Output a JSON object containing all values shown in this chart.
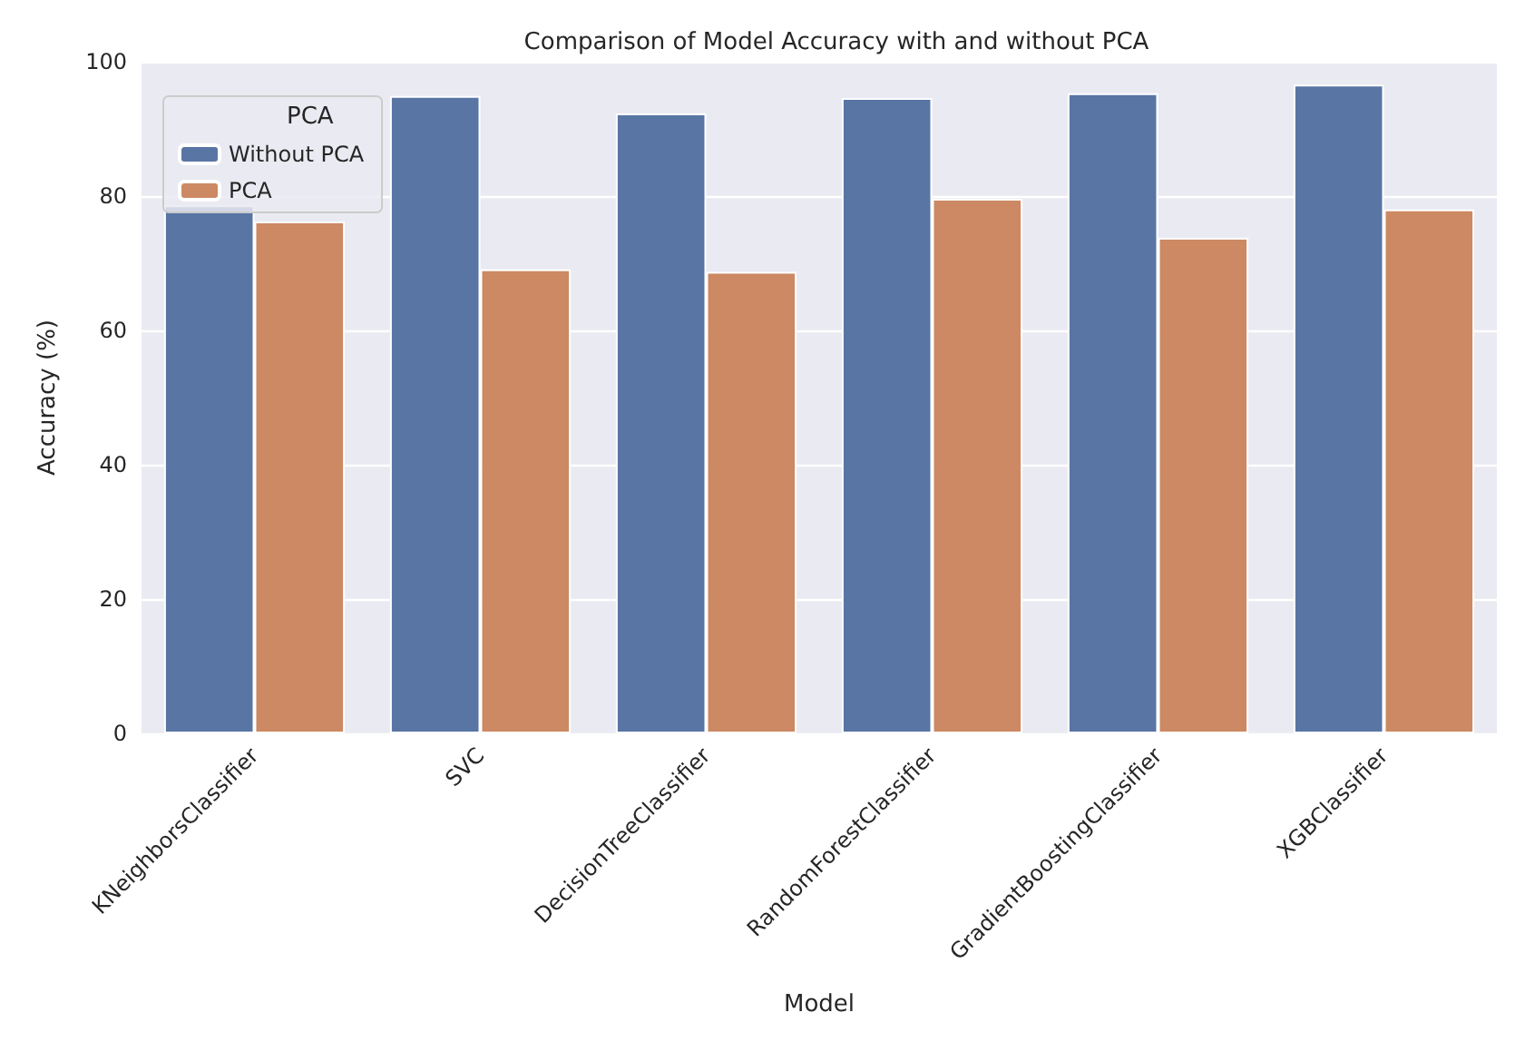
{
  "chart_data": {
    "type": "bar",
    "title": "Comparison of Model Accuracy with and without PCA",
    "xlabel": "Model",
    "ylabel": "Accuracy (%)",
    "legend_title": "PCA",
    "categories": [
      "KNeighborsClassifier",
      "SVC",
      "DecisionTreeClassifier",
      "RandomForestClassifier",
      "GradientBoostingClassifier",
      "XGBClassifier"
    ],
    "series": [
      {
        "name": "Without PCA",
        "color": "#5875a4",
        "values": [
          78.6,
          94.9,
          92.3,
          94.6,
          95.3,
          96.6
        ]
      },
      {
        "name": "PCA",
        "color": "#cc8963",
        "values": [
          76.2,
          69.1,
          68.7,
          79.6,
          73.8,
          78.0
        ]
      }
    ],
    "ylim": [
      0,
      100
    ],
    "yticks": [
      0,
      20,
      40,
      60,
      80,
      100
    ],
    "grid": "y",
    "legend": "top left"
  }
}
